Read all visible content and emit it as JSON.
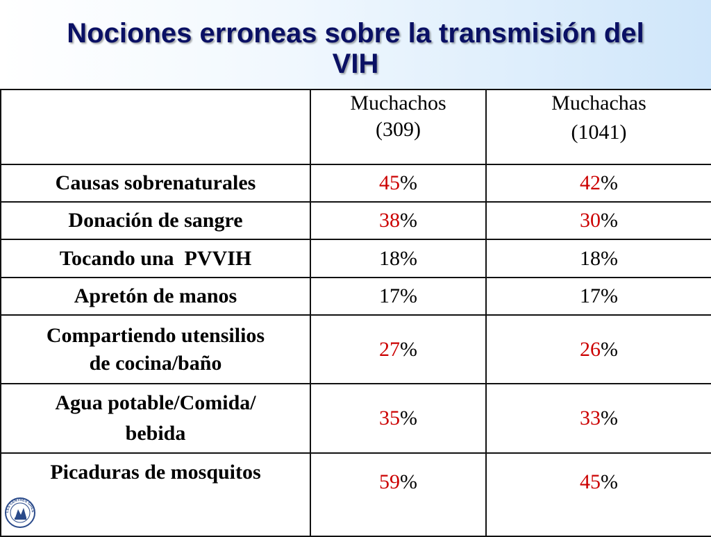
{
  "title": {
    "line1": "Nociones erroneas sobre  la transmisión del",
    "line2": "VIH"
  },
  "table": {
    "header": {
      "empty": "",
      "col1_line1": "Muchachos",
      "col1_line2": "(309)",
      "col2_line1": "Muchachas",
      "col2_line2": "(1041)"
    },
    "rows": [
      {
        "label": "Causas sobrenaturales",
        "m": "45",
        "f": "42",
        "highlight": true
      },
      {
        "label": "Donación de sangre",
        "m": "38",
        "f": "30",
        "highlight": true
      },
      {
        "label": "Tocando una  PVVIH",
        "m": "18",
        "f": "18",
        "highlight": false
      },
      {
        "label": "Apretón de manos",
        "m": "17",
        "f": "17",
        "highlight": false
      },
      {
        "label_line1": "Compartiendo utensilios",
        "label_line2": "de cocina/baño",
        "m": "27",
        "f": "26",
        "highlight": true
      },
      {
        "label_line1": "Agua potable/Comida/",
        "label_line2": "bebida",
        "m": "35",
        "f": "33",
        "highlight": true
      },
      {
        "label": "Picaduras de mosquitos",
        "m": "59",
        "f": "45",
        "highlight": true
      }
    ],
    "percent_symbol": "%"
  },
  "colors": {
    "title": "#0a1064",
    "highlight_value": "#cc0000",
    "normal_value": "#000000"
  },
  "logo": {
    "text": "LES CENTRES GHESKIO",
    "icon": "gheskio-logo-icon"
  }
}
